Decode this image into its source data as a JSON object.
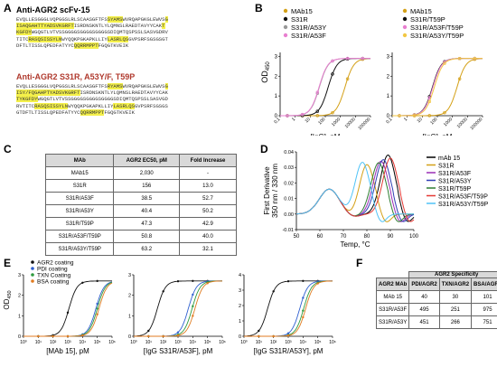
{
  "labels": {
    "A": "A",
    "B": "B",
    "C": "C",
    "D": "D",
    "E": "E",
    "F": "F"
  },
  "seqA": {
    "title1": "Anti-AGR2 scFv-15",
    "lines1": [
      [
        {
          "t": "EVQLLESGGGLVQPGGSLRLSCAASGFTFS"
        },
        {
          "t": "SYAMS",
          "h": 1
        },
        {
          "t": "WVRQAPGKGLEWVS"
        },
        {
          "t": "G",
          "h": 1
        }
      ],
      [
        {
          "t": "ISAQGAHTTYADSVKGRFT",
          "h": 1
        },
        {
          "t": "ISRDNSKNTLYLQMNSLRAEDTAVYYCAK"
        },
        {
          "t": "T",
          "h": 1
        }
      ],
      [
        {
          "t": "KGFDY",
          "h": 1
        },
        {
          "t": "WGQGTLVTVSSGGGGSGGGGSGGGGSDIQMTQSPSSLSASVGDRV"
        }
      ],
      [
        {
          "t": "TITC"
        },
        {
          "t": "RASQSISSYLN",
          "h": 1
        },
        {
          "t": "WYQQKPGKAPKLLIY"
        },
        {
          "t": "LASRLQS",
          "h": 1
        },
        {
          "t": "GVPSRFSGSGSGT"
        }
      ],
      [
        {
          "t": "DFTLTISSLQPEDFATYYC"
        },
        {
          "t": "QQRRMPPT",
          "h": 1
        },
        {
          "t": "FGQGTKVEIK"
        }
      ]
    ],
    "title2": "Anti-AGR2 S31R, A53Y/F, T59P",
    "lines2": [
      [
        {
          "t": "EVQLLESGGGLVQPGGSLRLSCAASGFTFS"
        },
        {
          "t": "RYAMS",
          "h": 1
        },
        {
          "t": "WVRQAPGKGLEWVS"
        },
        {
          "t": "G",
          "h": 1
        }
      ],
      [
        {
          "t": "ISY/FQGAHPTYADSVKGRFT",
          "h": 1
        },
        {
          "t": "ISRDNSKNTLYLQMNSLRAEDTAVYYCAK"
        }
      ],
      [
        {
          "t": "TYKGFDY",
          "h": 1
        },
        {
          "t": "WGQGTLVTVSSGGGGSGGGGSGGGGSDIQMTQSPSSLSASVGD"
        }
      ],
      [
        {
          "t": "RVTITC"
        },
        {
          "t": "RASQSISSYLN",
          "h": 1
        },
        {
          "t": "WYQQKPGKAPKLLIY"
        },
        {
          "t": "LASRLQS",
          "h": 1
        },
        {
          "t": "GVPSRFSGSGS"
        }
      ],
      [
        {
          "t": "GTDFTLTISSLQPEDFATYYC"
        },
        {
          "t": "QQRRMPPT",
          "h": 1
        },
        {
          "t": "FGQGTKVEIK"
        }
      ]
    ]
  },
  "chartB": {
    "type": "line",
    "ylabel": "OD450",
    "ylabel_main": "OD",
    "ylabel_sub": "450",
    "xlabel": "[IgG], pM",
    "xticks": [
      "0.1",
      "1",
      "10",
      "100",
      "1000",
      "10000",
      "100000"
    ],
    "yticks": [
      "0",
      "1",
      "2",
      "3"
    ],
    "ylim": [
      0,
      3.2
    ],
    "left": {
      "series": [
        {
          "name": "MAb15",
          "color": "#d4a017",
          "marker": "circle",
          "ec50": 2030
        },
        {
          "name": "S31R",
          "color": "#111111",
          "marker": "circle",
          "ec50": 156
        },
        {
          "name": "S31R/A53Y",
          "color": "#999999",
          "marker": "square",
          "ec50": 40.4
        },
        {
          "name": "S31R/A53F",
          "color": "#e87fd0",
          "marker": "diamond",
          "ec50": 38.5
        }
      ]
    },
    "right": {
      "series": [
        {
          "name": "MAb15",
          "color": "#d4a017",
          "marker": "circle",
          "ec50": 2030
        },
        {
          "name": "S31R/T59P",
          "color": "#111111",
          "marker": "circle",
          "ec50": 47.3
        },
        {
          "name": "S31R/A53F/T59P",
          "color": "#e87fd0",
          "marker": "square",
          "ec50": 50.8
        },
        {
          "name": "S31R/A53Y/T59P",
          "color": "#f2c744",
          "marker": "diamond",
          "ec50": 63.2
        }
      ]
    }
  },
  "tableC": {
    "headers": [
      "MAb",
      "AGR2 EC50, pM",
      "Fold Increase"
    ],
    "rows": [
      [
        "MAb15",
        "2,030",
        "-"
      ],
      [
        "S31R",
        "156",
        "13.0"
      ],
      [
        "S31R/A53F",
        "38.5",
        "52.7"
      ],
      [
        "S31R/A53Y",
        "40.4",
        "50.2"
      ],
      [
        "S31R/T59P",
        "47.3",
        "42.9"
      ],
      [
        "S31R/A53F/T59P",
        "50.8",
        "40.0"
      ],
      [
        "S31R/A53Y/T59P",
        "63.2",
        "32.1"
      ]
    ]
  },
  "chartD": {
    "type": "line",
    "ylabel1": "First Derivative",
    "ylabel2": "350 nm / 330 nm",
    "xlabel": "Temp, °C",
    "xticks": [
      "50",
      "60",
      "70",
      "80",
      "90",
      "100"
    ],
    "yticks": [
      "-0.01",
      "0.00",
      "0.01",
      "0.02",
      "0.03",
      "0.04"
    ],
    "xlim": [
      50,
      100
    ],
    "ylim": [
      -0.01,
      0.04
    ],
    "series": [
      {
        "name": "mAb 15",
        "color": "#000000",
        "peak": 89,
        "h": 0.038
      },
      {
        "name": "S31R",
        "color": "#d4a017",
        "peak": 80,
        "h": 0.032
      },
      {
        "name": "S31R/A53F",
        "color": "#9b2fb5",
        "peak": 86,
        "h": 0.034
      },
      {
        "name": "S31R/A53Y",
        "color": "#2f3fb5",
        "peak": 87,
        "h": 0.035
      },
      {
        "name": "S31R/T59P",
        "color": "#2e7d32",
        "peak": 85,
        "h": 0.033
      },
      {
        "name": "S31R/A53F/T59P",
        "color": "#e53935",
        "peak": 90,
        "h": 0.036
      },
      {
        "name": "S31R/A53Y/T59P",
        "color": "#4fc3f7",
        "peak": 78,
        "h": 0.034
      }
    ]
  },
  "chartE": {
    "type": "line",
    "ylabel": "OD450",
    "ylabel_main": "OD",
    "ylabel_sub": "450",
    "legend": [
      {
        "name": "AGR2 coating",
        "color": "#111111"
      },
      {
        "name": "PDI coating",
        "color": "#2f5fd0"
      },
      {
        "name": "TXN Coating",
        "color": "#2e9b3e"
      },
      {
        "name": "BSA coating",
        "color": "#e07b20"
      }
    ],
    "panels": [
      {
        "xlabel": "[MAb 15], pM",
        "yticks": [
          "0",
          "1",
          "2",
          "3"
        ],
        "ymax": 3,
        "ec": [
          1200,
          80000,
          100000,
          130000
        ]
      },
      {
        "xlabel": "[IgG S31R/A53F], pM",
        "yticks": [
          "0",
          "1",
          "2",
          "3"
        ],
        "ymax": 3,
        "ec": [
          40,
          5000,
          9000,
          14000
        ]
      },
      {
        "xlabel": "[IgG S31R/A53Y], pM",
        "yticks": [
          "0",
          "1",
          "2",
          "3",
          "4"
        ],
        "ymax": 4,
        "ec": [
          40,
          6000,
          11000,
          15000
        ]
      }
    ],
    "xticks": [
      "10⁰",
      "10¹",
      "10²",
      "10³",
      "10⁴",
      "10⁵",
      "10⁶"
    ]
  },
  "tableF": {
    "group": "AGR2 Specificity",
    "headers": [
      "AGR2 MAb",
      "PDI/AGR2",
      "TXN/AGR2",
      "BSA/AGR2"
    ],
    "rows": [
      [
        "MAb 15",
        "40",
        "30",
        "101"
      ],
      [
        "S31R/A53F",
        "495",
        "251",
        "975"
      ],
      [
        "S31R/A53Y",
        "451",
        "266",
        "751"
      ]
    ]
  }
}
